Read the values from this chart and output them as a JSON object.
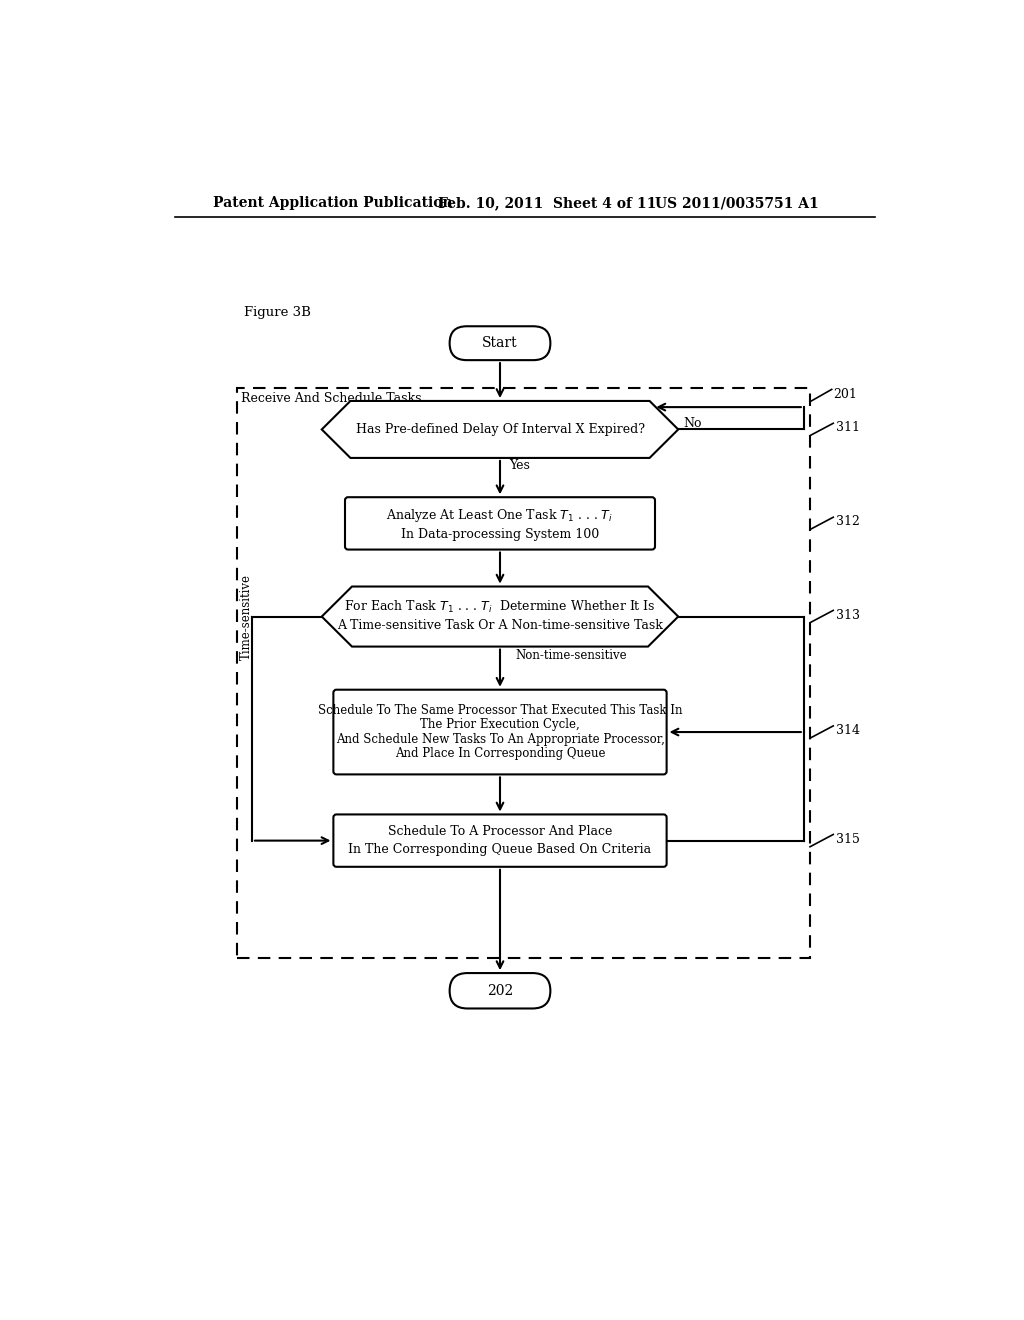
{
  "title_line1": "Patent Application Publication",
  "title_line2": "Feb. 10, 2011  Sheet 4 of 11",
  "title_line3": "US 2011/0035751 A1",
  "figure_label": "Figure 3B",
  "bg_color": "#ffffff",
  "text_color": "#000000",
  "dashed_box_label": "Receive And Schedule Tasks",
  "ref_201": "201",
  "start_label": "Start",
  "end_label": "202",
  "node_311_label": "Has Pre-defined Delay Of Interval X Expired?",
  "node_311_ref": "311",
  "node_311_no": "No",
  "node_312_line1": "Analyze At Least One Task",
  "node_312_line2": "In Data-processing System 100",
  "node_312_ref": "312",
  "node_312_yes": "Yes",
  "node_313_line1": "For Each Task",
  "node_313_line2": "A Time-sensitive Task Or A Non-time-sensitive Task",
  "node_313_ref": "313",
  "node_313_ts": "Time-sensitive",
  "node_313_nts": "Non-time-sensitive",
  "node_314_line1": "Schedule To The Same Processor That Executed This Task In",
  "node_314_line2": "The Prior Execution Cycle,",
  "node_314_line3": "And Schedule New Tasks To An Appropriate Processor,",
  "node_314_line4": "And Place In Corresponding Queue",
  "node_314_ref": "314",
  "node_315_line1": "Schedule To A Processor And Place",
  "node_315_line2": "In The Corresponding Queue Based On Criteria",
  "node_315_ref": "315"
}
